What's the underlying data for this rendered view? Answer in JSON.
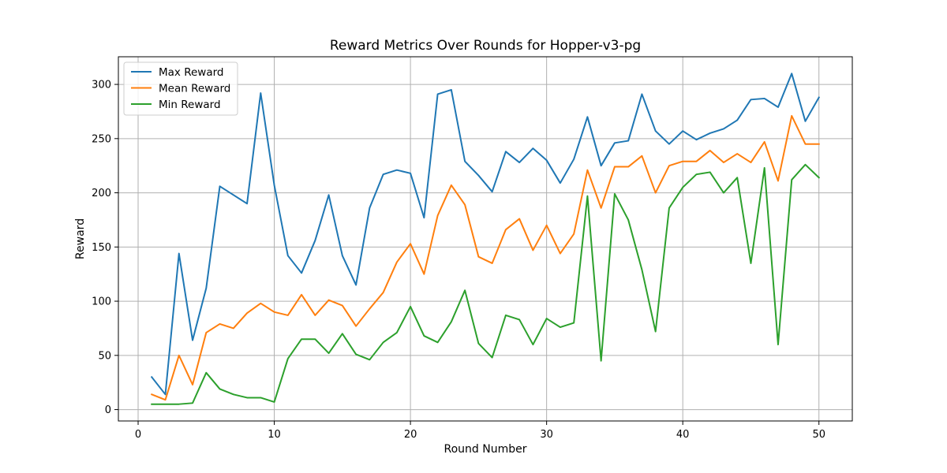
{
  "chart_data": {
    "type": "line",
    "title": "Reward Metrics Over Rounds for Hopper-v3-pg",
    "xlabel": "Round Number",
    "ylabel": "Reward",
    "xlim": [
      -1.45,
      52.45
    ],
    "ylim": [
      -10.5,
      325.5
    ],
    "xticks": [
      0,
      10,
      20,
      30,
      40,
      50
    ],
    "yticks": [
      0,
      50,
      100,
      150,
      200,
      250,
      300
    ],
    "grid": true,
    "legend_position": "upper-left",
    "x": [
      1,
      2,
      3,
      4,
      5,
      6,
      7,
      8,
      9,
      10,
      11,
      12,
      13,
      14,
      15,
      16,
      17,
      18,
      19,
      20,
      21,
      22,
      23,
      24,
      25,
      26,
      27,
      28,
      29,
      30,
      31,
      32,
      33,
      34,
      35,
      36,
      37,
      38,
      39,
      40,
      41,
      42,
      43,
      44,
      45,
      46,
      47,
      48,
      49,
      50
    ],
    "series": [
      {
        "name": "Max Reward",
        "color": "#1f77b4",
        "values": [
          30,
          14,
          144,
          64,
          112,
          206,
          198,
          190,
          292,
          207,
          142,
          126,
          156,
          198,
          142,
          115,
          186,
          217,
          221,
          218,
          177,
          291,
          295,
          229,
          216,
          201,
          238,
          228,
          241,
          230,
          209,
          231,
          270,
          225,
          246,
          248,
          291,
          257,
          245,
          257,
          249,
          255,
          259,
          267,
          286,
          287,
          279,
          310,
          266,
          288
        ]
      },
      {
        "name": "Mean Reward",
        "color": "#ff7f0e",
        "values": [
          14,
          9,
          50,
          23,
          71,
          79,
          75,
          89,
          98,
          90,
          87,
          106,
          87,
          101,
          96,
          77,
          93,
          108,
          136,
          153,
          125,
          179,
          207,
          189,
          141,
          135,
          166,
          176,
          147,
          170,
          144,
          162,
          221,
          186,
          224,
          224,
          234,
          200,
          225,
          229,
          229,
          239,
          228,
          236,
          228,
          247,
          211,
          271,
          245,
          245
        ]
      },
      {
        "name": "Min Reward",
        "color": "#2ca02c",
        "values": [
          5,
          5,
          5,
          6,
          34,
          19,
          14,
          11,
          11,
          7,
          47,
          65,
          65,
          52,
          70,
          51,
          46,
          62,
          71,
          95,
          68,
          62,
          81,
          110,
          61,
          48,
          87,
          83,
          60,
          84,
          76,
          80,
          197,
          45,
          199,
          175,
          129,
          72,
          186,
          205,
          217,
          219,
          200,
          214,
          135,
          223,
          60,
          212,
          226,
          214
        ]
      }
    ]
  }
}
